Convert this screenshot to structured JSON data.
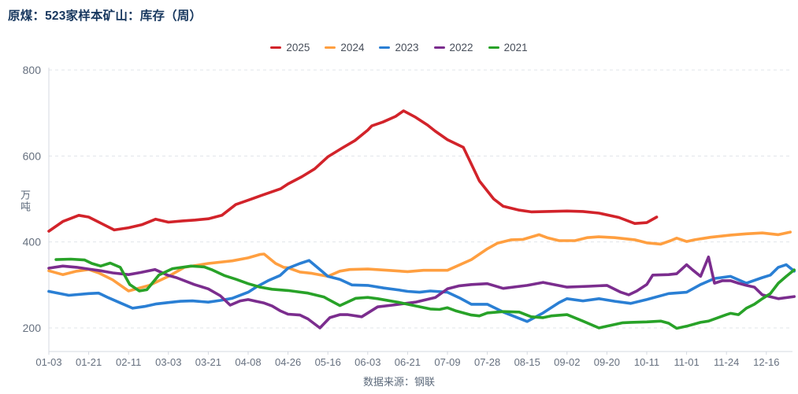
{
  "title": "原煤：523家样本矿山：库存（周）",
  "source": "数据来源：钢联",
  "y_axis": {
    "title": "万吨",
    "ticks": [
      200,
      400,
      600,
      800
    ],
    "range": [
      200,
      800
    ]
  },
  "x_axis": {
    "labels": [
      "01-03",
      "01-21",
      "02-11",
      "03-03",
      "03-21",
      "04-08",
      "04-26",
      "05-16",
      "06-03",
      "06-21",
      "07-09",
      "07-28",
      "08-15",
      "09-02",
      "09-20",
      "10-11",
      "11-01",
      "11-24",
      "12-16"
    ]
  },
  "legend": [
    {
      "label": "2025",
      "color": "#d2232a"
    },
    {
      "label": "2024",
      "color": "#ff9f40"
    },
    {
      "label": "2023",
      "color": "#2a7fd4"
    },
    {
      "label": "2022",
      "color": "#7b2d8e"
    },
    {
      "label": "2021",
      "color": "#28a228"
    }
  ],
  "chart_data": {
    "type": "line",
    "title": "原煤：523家样本矿山：库存（周）",
    "ylabel": "万吨",
    "ylim": [
      200,
      800
    ],
    "grid": "horizontal-dashed",
    "legend_position": "top-center",
    "x_unit": "tick index: 0 = 01-03 … 18 = 12-16 (labels every ~3 weeks, data ~weekly)",
    "series": [
      {
        "name": "2025",
        "color": "#d2232a",
        "points": [
          [
            0,
            425
          ],
          [
            0.36,
            448
          ],
          [
            0.75,
            462
          ],
          [
            1,
            458
          ],
          [
            1.34,
            442
          ],
          [
            1.64,
            428
          ],
          [
            2,
            433
          ],
          [
            2.33,
            440
          ],
          [
            2.68,
            453
          ],
          [
            3,
            446
          ],
          [
            3.35,
            449
          ],
          [
            3.67,
            451
          ],
          [
            4,
            454
          ],
          [
            4.34,
            462
          ],
          [
            4.69,
            487
          ],
          [
            5,
            497
          ],
          [
            5.33,
            508
          ],
          [
            5.82,
            524
          ],
          [
            6,
            535
          ],
          [
            6.35,
            552
          ],
          [
            6.67,
            570
          ],
          [
            7,
            598
          ],
          [
            7.35,
            618
          ],
          [
            7.68,
            636
          ],
          [
            8,
            660
          ],
          [
            8.1,
            670
          ],
          [
            8.38,
            679
          ],
          [
            8.7,
            692
          ],
          [
            8.9,
            705
          ],
          [
            9.2,
            690
          ],
          [
            9.5,
            672
          ],
          [
            9.69,
            658
          ],
          [
            10,
            638
          ],
          [
            10.4,
            620
          ],
          [
            10.8,
            542
          ],
          [
            11.16,
            500
          ],
          [
            11.4,
            483
          ],
          [
            11.8,
            474
          ],
          [
            12.1,
            470
          ],
          [
            12.5,
            471
          ],
          [
            13,
            472
          ],
          [
            13.4,
            471
          ],
          [
            13.8,
            467
          ],
          [
            14.3,
            457
          ],
          [
            14.7,
            443
          ],
          [
            15,
            445
          ],
          [
            15.25,
            458
          ]
        ]
      },
      {
        "name": "2024",
        "color": "#ff9f40",
        "points": [
          [
            0,
            333
          ],
          [
            0.35,
            324
          ],
          [
            0.7,
            332
          ],
          [
            1,
            336
          ],
          [
            1.25,
            328
          ],
          [
            1.6,
            312
          ],
          [
            2,
            286
          ],
          [
            2.52,
            299
          ],
          [
            3,
            320
          ],
          [
            3.4,
            341
          ],
          [
            4,
            350
          ],
          [
            4.6,
            356
          ],
          [
            5,
            363
          ],
          [
            5.3,
            371
          ],
          [
            5.4,
            372
          ],
          [
            5.69,
            350
          ],
          [
            5.89,
            341
          ],
          [
            6,
            340
          ],
          [
            6.3,
            330
          ],
          [
            6.6,
            327
          ],
          [
            7,
            320
          ],
          [
            7.3,
            332
          ],
          [
            7.55,
            336
          ],
          [
            8,
            337
          ],
          [
            8.5,
            334
          ],
          [
            9,
            331
          ],
          [
            9.4,
            334
          ],
          [
            10,
            334
          ],
          [
            10.6,
            359
          ],
          [
            11,
            384
          ],
          [
            11.25,
            397
          ],
          [
            11.6,
            405
          ],
          [
            11.9,
            406
          ],
          [
            12.3,
            417
          ],
          [
            12.5,
            410
          ],
          [
            12.8,
            403
          ],
          [
            13.2,
            403
          ],
          [
            13.5,
            410
          ],
          [
            13.8,
            412
          ],
          [
            14.2,
            410
          ],
          [
            14.7,
            405
          ],
          [
            15,
            398
          ],
          [
            15.35,
            395
          ],
          [
            15.6,
            403
          ],
          [
            15.75,
            409
          ],
          [
            16,
            401
          ],
          [
            16.2,
            405
          ],
          [
            16.6,
            411
          ],
          [
            17.1,
            416
          ],
          [
            17.5,
            419
          ],
          [
            17.9,
            421
          ],
          [
            18.3,
            417
          ],
          [
            18.6,
            423
          ]
        ]
      },
      {
        "name": "2023",
        "color": "#2a7fd4",
        "points": [
          [
            0,
            285
          ],
          [
            0.5,
            276
          ],
          [
            1,
            280
          ],
          [
            1.25,
            281
          ],
          [
            1.5,
            270
          ],
          [
            1.8,
            258
          ],
          [
            2.1,
            246
          ],
          [
            2.4,
            250
          ],
          [
            2.7,
            256
          ],
          [
            3,
            259
          ],
          [
            3.3,
            262
          ],
          [
            3.6,
            263
          ],
          [
            4,
            260
          ],
          [
            4.3,
            264
          ],
          [
            4.6,
            269
          ],
          [
            5,
            283
          ],
          [
            5.2,
            295
          ],
          [
            5.5,
            310
          ],
          [
            5.8,
            322
          ],
          [
            6,
            339
          ],
          [
            6.3,
            350
          ],
          [
            6.53,
            357
          ],
          [
            6.8,
            336
          ],
          [
            7,
            320
          ],
          [
            7.3,
            313
          ],
          [
            7.6,
            300
          ],
          [
            8,
            299
          ],
          [
            8.4,
            293
          ],
          [
            8.8,
            288
          ],
          [
            9,
            285
          ],
          [
            9.3,
            283
          ],
          [
            9.57,
            286
          ],
          [
            10,
            283
          ],
          [
            10.3,
            270
          ],
          [
            10.6,
            255
          ],
          [
            11,
            255
          ],
          [
            11.4,
            237
          ],
          [
            12,
            215
          ],
          [
            12.4,
            235
          ],
          [
            12.8,
            259
          ],
          [
            13,
            268
          ],
          [
            13.4,
            263
          ],
          [
            13.8,
            268
          ],
          [
            14.2,
            262
          ],
          [
            14.6,
            257
          ],
          [
            15,
            266
          ],
          [
            15.55,
            280
          ],
          [
            16,
            283
          ],
          [
            16.35,
            301
          ],
          [
            16.7,
            315
          ],
          [
            17.1,
            320
          ],
          [
            17.5,
            304
          ],
          [
            17.9,
            317
          ],
          [
            18.1,
            323
          ],
          [
            18.3,
            341
          ],
          [
            18.5,
            347
          ],
          [
            18.7,
            332
          ]
        ]
      },
      {
        "name": "2022",
        "color": "#7b2d8e",
        "points": [
          [
            0,
            339
          ],
          [
            0.35,
            344
          ],
          [
            0.7,
            341
          ],
          [
            1,
            337
          ],
          [
            1.3,
            333
          ],
          [
            1.6,
            328
          ],
          [
            2,
            324
          ],
          [
            2.3,
            329
          ],
          [
            2.66,
            336
          ],
          [
            3,
            322
          ],
          [
            3.2,
            317
          ],
          [
            3.65,
            301
          ],
          [
            4,
            291
          ],
          [
            4.3,
            275
          ],
          [
            4.55,
            253
          ],
          [
            4.8,
            263
          ],
          [
            5,
            266
          ],
          [
            5.2,
            262
          ],
          [
            5.4,
            258
          ],
          [
            5.6,
            251
          ],
          [
            5.8,
            240
          ],
          [
            6,
            232
          ],
          [
            6.3,
            230
          ],
          [
            6.5,
            221
          ],
          [
            6.8,
            200
          ],
          [
            7.05,
            224
          ],
          [
            7.3,
            231
          ],
          [
            7.5,
            231
          ],
          [
            7.85,
            226
          ],
          [
            8.25,
            249
          ],
          [
            8.7,
            254
          ],
          [
            9.2,
            260
          ],
          [
            9.7,
            271
          ],
          [
            10,
            291
          ],
          [
            10.3,
            298
          ],
          [
            10.6,
            301
          ],
          [
            11,
            303
          ],
          [
            11.4,
            292
          ],
          [
            12,
            299
          ],
          [
            12.4,
            306
          ],
          [
            13,
            295
          ],
          [
            13.55,
            297
          ],
          [
            14,
            299
          ],
          [
            14.35,
            283
          ],
          [
            14.55,
            277
          ],
          [
            14.75,
            286
          ],
          [
            15,
            301
          ],
          [
            15.15,
            323
          ],
          [
            15.55,
            324
          ],
          [
            15.75,
            326
          ],
          [
            16,
            347
          ],
          [
            16.15,
            335
          ],
          [
            16.35,
            320
          ],
          [
            16.55,
            365
          ],
          [
            16.7,
            304
          ],
          [
            16.9,
            310
          ],
          [
            17.1,
            310
          ],
          [
            17.3,
            304
          ],
          [
            17.5,
            299
          ],
          [
            17.7,
            295
          ],
          [
            17.9,
            277
          ],
          [
            18.3,
            268
          ],
          [
            18.7,
            273
          ]
        ]
      },
      {
        "name": "2021",
        "color": "#28a228",
        "points": [
          [
            0.18,
            359
          ],
          [
            0.55,
            360
          ],
          [
            0.9,
            358
          ],
          [
            1.08,
            350
          ],
          [
            1.3,
            344
          ],
          [
            1.54,
            351
          ],
          [
            1.79,
            341
          ],
          [
            2.03,
            301
          ],
          [
            2.27,
            286
          ],
          [
            2.46,
            289
          ],
          [
            2.76,
            323
          ],
          [
            3.1,
            338
          ],
          [
            3.57,
            344
          ],
          [
            3.9,
            342
          ],
          [
            4.1,
            335
          ],
          [
            4.4,
            322
          ],
          [
            4.7,
            313
          ],
          [
            5,
            303
          ],
          [
            5.3,
            295
          ],
          [
            5.6,
            290
          ],
          [
            6,
            287
          ],
          [
            6.5,
            281
          ],
          [
            6.9,
            272
          ],
          [
            7,
            267
          ],
          [
            7.3,
            252
          ],
          [
            7.7,
            269
          ],
          [
            8,
            271
          ],
          [
            8.25,
            268
          ],
          [
            8.8,
            259
          ],
          [
            9,
            255
          ],
          [
            9.57,
            244
          ],
          [
            9.8,
            243
          ],
          [
            10,
            247
          ],
          [
            10.2,
            240
          ],
          [
            10.6,
            230
          ],
          [
            10.8,
            228
          ],
          [
            11,
            235
          ],
          [
            11.4,
            238
          ],
          [
            11.8,
            237
          ],
          [
            12.1,
            226
          ],
          [
            12.4,
            224
          ],
          [
            12.6,
            228
          ],
          [
            13,
            231
          ],
          [
            13.4,
            216
          ],
          [
            13.8,
            200
          ],
          [
            14,
            204
          ],
          [
            14.4,
            212
          ],
          [
            14.6,
            213
          ],
          [
            15,
            214
          ],
          [
            15.35,
            216
          ],
          [
            15.55,
            211
          ],
          [
            15.75,
            199
          ],
          [
            16,
            204
          ],
          [
            16.35,
            213
          ],
          [
            16.55,
            216
          ],
          [
            17,
            231
          ],
          [
            17.1,
            234
          ],
          [
            17.3,
            231
          ],
          [
            17.5,
            246
          ],
          [
            17.7,
            255
          ],
          [
            17.9,
            268
          ],
          [
            18.1,
            280
          ],
          [
            18.3,
            304
          ],
          [
            18.5,
            320
          ],
          [
            18.7,
            335
          ]
        ]
      }
    ]
  }
}
